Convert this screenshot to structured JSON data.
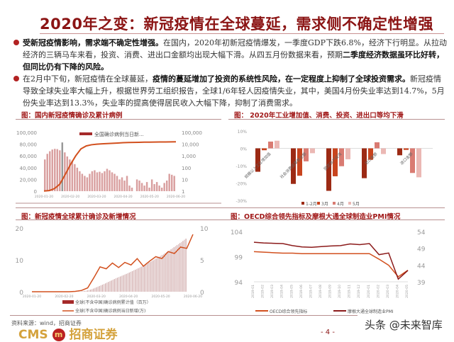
{
  "title": "2020年之变：新冠疫情在全球蔓延，需求侧不确定性增强",
  "paragraphs": [
    {
      "bold1": "受新冠疫情影响，需求端不确定性增强。",
      "text1": "在国内，2020年初新冠疫情爆发，一季度GDP下跌6.8%，经济下行明显。从拉动经济的三辆马车来看，投资、消费、进出口金额均出现大幅下滑。从四五月份数据来看，预期",
      "bold2": "二季度经济数据虽环比好转，但同比仍有下降的风险。",
      "text2": ""
    },
    {
      "text0": "在2月中下旬，新冠疫情在全球蔓延，",
      "bold1": "疫情的蔓延增加了投资的系统性风险，在一定程度上抑制了全球投资需求。",
      "text1": "新冠疫情导致全球失业率大幅上升，根据世界劳工组织报告，全球1/6年轻人因疫情失业，其中，美国4月份失业率达到14.7%，5月份失业率达到13.3%，失业率的提高使得居民收入大幅下降，抑制了消费需求。"
    }
  ],
  "footer": {
    "source": "资料来源：wind，招商证券",
    "logo_text": "CMS",
    "logo_cn": "招商证券",
    "logo_m": "m",
    "watermark": "头条 @未来智库",
    "page": "- 4 -"
  },
  "colors": {
    "title": "#8b1414",
    "accent": "#b22222",
    "bar_light": "#d9a0a0",
    "line": "#d2501e"
  },
  "chart_data": [
    {
      "type": "bar+line",
      "title": "图：国内新冠疫情确诊及累计病例",
      "x_ticks": [
        "2020-01-20",
        "2020-02-20",
        "2020-03-20",
        "2020-04-20",
        "2020-05-20",
        "2020-06-20"
      ],
      "left_ticks": [
        "0",
        "20,000",
        "40,000",
        "60,000",
        "80,000",
        "100,000"
      ],
      "ylim_left": [
        0,
        100000
      ],
      "right_ticks": [
        "1",
        "10",
        "100",
        "1,000",
        "10,000",
        "100,000"
      ],
      "ylim_right": [
        1,
        100000
      ],
      "right_scale": "log",
      "legend": [
        "全国确诊病例当日新..."
      ],
      "line_cumulative": [
        300,
        1000,
        4500,
        12000,
        28000,
        45000,
        60000,
        72000,
        77000,
        79000,
        80000,
        80500,
        81000,
        81500,
        82000,
        82500,
        82800,
        83000,
        83200,
        83400,
        83500,
        83600,
        83700,
        83800,
        83900,
        84000
      ],
      "bars_daily_new": [
        500,
        1500,
        2500,
        3500,
        4000,
        3800,
        3000,
        14000,
        2000,
        900,
        500,
        400,
        200,
        100,
        50,
        30,
        20,
        15,
        30,
        50,
        60,
        40,
        45,
        35,
        50,
        80,
        60,
        40,
        30,
        20,
        10,
        15,
        8,
        20,
        3,
        2,
        1,
        10,
        8,
        5,
        3,
        6,
        2,
        10,
        4,
        6,
        3,
        2,
        5,
        8,
        30,
        25,
        20
      ]
    },
    {
      "type": "bar",
      "title": "图： 2020年工业增加值、消费、投资、进出口等均下滑",
      "categories": [
        "规模以上工业增加值",
        "社会消费品零售总额",
        "固定资产投资",
        "出口金额",
        "进口金额"
      ],
      "y_ticks": [
        "10%",
        "0%",
        "-10%",
        "-20%",
        "-30%"
      ],
      "ylim": [
        -30,
        10
      ],
      "series": [
        {
          "name": "1-2月",
          "color": "#9c2a14",
          "values": [
            -13.5,
            -20.5,
            -24.5,
            -17.2,
            -4.0
          ]
        },
        {
          "name": "3月",
          "color": "#c8441e",
          "values": [
            -1.1,
            -15.8,
            -16.1,
            -6.6,
            -0.9
          ]
        },
        {
          "name": "4月",
          "color": "#d97b72",
          "values": [
            3.9,
            -7.5,
            -10.3,
            3.5,
            -14.2
          ]
        },
        {
          "name": "5月",
          "color": "#ebb8b4",
          "values": [
            4.4,
            -2.8,
            -6.3,
            -3.3,
            -16.7
          ]
        }
      ]
    },
    {
      "type": "bar+line",
      "title": "图：新冠疫情全球累计确诊及新增情况",
      "x_ticks": [
        "2020-01-20",
        "2020-02-20",
        "2020-03-20",
        "2020-04-20",
        "2020-05-20",
        "2020-06-20"
      ],
      "left_ticks": [
        "0",
        "10",
        "20"
      ],
      "ylim_left": [
        0,
        20
      ],
      "right_ticks": [
        "0",
        "5",
        "10"
      ],
      "ylim_right": [
        0,
        10
      ],
      "legend": [
        "全球(不含中国)确诊病例累计值（百万）",
        "全球(不含中国)确诊病例当日新增(万)"
      ],
      "bars_cumulative": [
        0,
        0,
        0,
        0,
        0,
        0,
        0,
        0,
        0.1,
        0.3,
        0.8,
        1.6,
        2.4,
        3.3,
        4.2,
        5.0,
        5.8,
        6.7,
        7.6,
        8.6,
        9.6,
        10.7,
        11.8,
        13.0,
        14.3,
        15.6,
        17.0
      ],
      "line_daily_new": [
        0,
        0,
        0,
        0,
        0,
        0,
        0,
        0.05,
        0.2,
        0.6,
        2.2,
        3.9,
        3.6,
        4.5,
        3.8,
        4.6,
        4.2,
        5.2,
        4.0,
        4.8,
        5.5,
        5.2,
        6.3,
        6.0,
        7.0,
        6.8,
        9.0
      ]
    },
    {
      "type": "line",
      "title": "图：OECD综合领先指标及摩根大通全球制造业PMI情况",
      "categories": [
        "2019-01",
        "2019-02",
        "2019-03",
        "2019-04",
        "2019-05",
        "2019-06",
        "2019-07",
        "2019-08",
        "2019-09",
        "2019-10",
        "2019-11",
        "2019-12",
        "2020-01",
        "2020-02",
        "2020-03",
        "2020-04",
        "2020-05"
      ],
      "left_ticks": [
        "94",
        "99",
        "104"
      ],
      "ylim_left": [
        94,
        104
      ],
      "right_ticks": [
        "39",
        "44",
        "49",
        "54"
      ],
      "ylim_right": [
        39,
        54
      ],
      "series": [
        {
          "name": "OECD综合领先指标",
          "axis": "left",
          "color": "#d2501e",
          "values": [
            100.0,
            99.9,
            99.8,
            99.7,
            99.7,
            99.6,
            99.6,
            99.6,
            99.6,
            99.6,
            99.6,
            99.6,
            99.6,
            98.5,
            97.3,
            95.0,
            96.3
          ]
        },
        {
          "name": "摩根大通全球制造业PMI",
          "axis": "right",
          "color": "#8b1a1a",
          "values": [
            50.8,
            50.6,
            50.5,
            50.4,
            49.8,
            49.4,
            49.3,
            49.5,
            49.7,
            49.8,
            50.3,
            50.1,
            50.4,
            47.1,
            47.6,
            39.8,
            42.4
          ]
        }
      ]
    }
  ]
}
